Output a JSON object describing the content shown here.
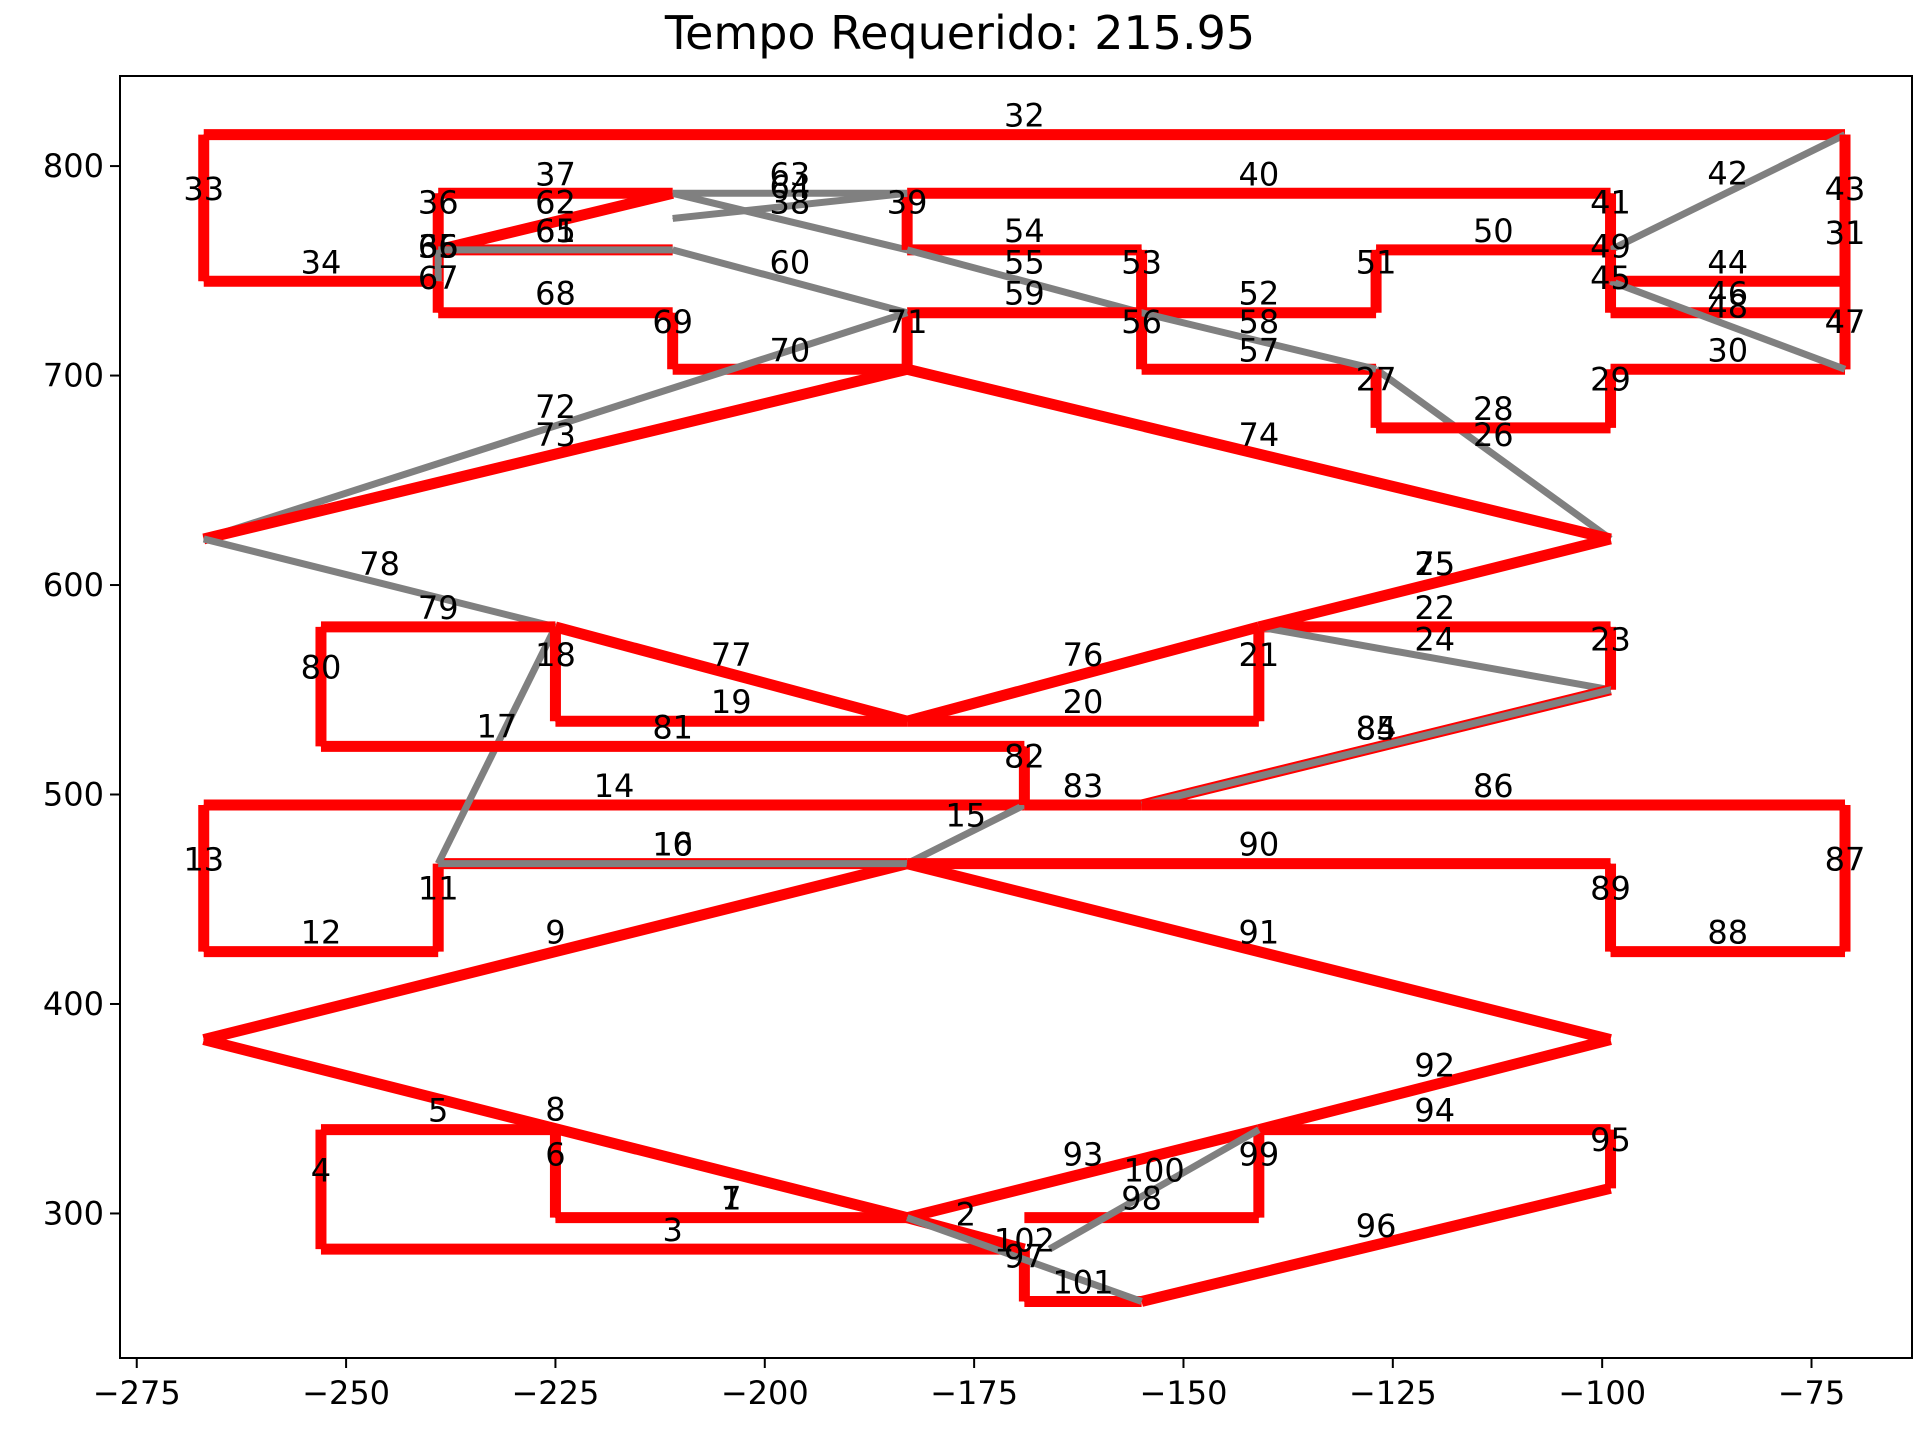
{
  "chart_data": {
    "type": "line",
    "title": "Tempo Requerido: 215.95",
    "xlabel": "",
    "ylabel": "",
    "xlim": [
      -277,
      -63
    ],
    "ylim": [
      231,
      843
    ],
    "xticks": [
      -275,
      -250,
      -225,
      -200,
      -175,
      -150,
      -125,
      -100,
      -75
    ],
    "xtick_labels": [
      "−275",
      "−250",
      "−225",
      "−200",
      "−175",
      "−150",
      "−125",
      "−100",
      "−75"
    ],
    "yticks": [
      300,
      400,
      500,
      600,
      700,
      800
    ],
    "ytick_labels": [
      "300",
      "400",
      "500",
      "600",
      "700",
      "800"
    ],
    "grid": false,
    "legend": "none",
    "colors": {
      "loaded": "#ff0000",
      "empty": "#808080"
    },
    "segments": [
      {
        "label": "1",
        "from": [
          -225,
          298
        ],
        "to": [
          -183,
          298
        ],
        "kind": "empty"
      },
      {
        "label": "2",
        "from": [
          -183,
          298
        ],
        "to": [
          -169,
          283
        ],
        "kind": "loaded"
      },
      {
        "label": "3",
        "from": [
          -169,
          283
        ],
        "to": [
          -253,
          283
        ],
        "kind": "loaded"
      },
      {
        "label": "4",
        "from": [
          -253,
          283
        ],
        "to": [
          -253,
          340
        ],
        "kind": "loaded"
      },
      {
        "label": "5",
        "from": [
          -253,
          340
        ],
        "to": [
          -225,
          340
        ],
        "kind": "loaded"
      },
      {
        "label": "6",
        "from": [
          -225,
          340
        ],
        "to": [
          -225,
          298
        ],
        "kind": "loaded"
      },
      {
        "label": "7",
        "from": [
          -225,
          298
        ],
        "to": [
          -183,
          298
        ],
        "kind": "loaded"
      },
      {
        "label": "8",
        "from": [
          -183,
          298
        ],
        "to": [
          -267,
          383
        ],
        "kind": "loaded"
      },
      {
        "label": "9",
        "from": [
          -267,
          383
        ],
        "to": [
          -183,
          467
        ],
        "kind": "loaded"
      },
      {
        "label": "10",
        "from": [
          -183,
          467
        ],
        "to": [
          -239,
          467
        ],
        "kind": "loaded"
      },
      {
        "label": "11",
        "from": [
          -239,
          467
        ],
        "to": [
          -239,
          425
        ],
        "kind": "loaded"
      },
      {
        "label": "12",
        "from": [
          -239,
          425
        ],
        "to": [
          -267,
          425
        ],
        "kind": "loaded"
      },
      {
        "label": "13",
        "from": [
          -267,
          425
        ],
        "to": [
          -267,
          495
        ],
        "kind": "loaded"
      },
      {
        "label": "14",
        "from": [
          -267,
          495
        ],
        "to": [
          -169,
          495
        ],
        "kind": "loaded"
      },
      {
        "label": "15",
        "from": [
          -169,
          495
        ],
        "to": [
          -183,
          467
        ],
        "kind": "empty"
      },
      {
        "label": "16",
        "from": [
          -183,
          467
        ],
        "to": [
          -239,
          467
        ],
        "kind": "empty"
      },
      {
        "label": "17",
        "from": [
          -239,
          467
        ],
        "to": [
          -225,
          580
        ],
        "kind": "empty"
      },
      {
        "label": "18",
        "from": [
          -225,
          580
        ],
        "to": [
          -225,
          535
        ],
        "kind": "loaded"
      },
      {
        "label": "19",
        "from": [
          -225,
          535
        ],
        "to": [
          -183,
          535
        ],
        "kind": "loaded"
      },
      {
        "label": "20",
        "from": [
          -183,
          535
        ],
        "to": [
          -141,
          535
        ],
        "kind": "loaded"
      },
      {
        "label": "21",
        "from": [
          -141,
          535
        ],
        "to": [
          -141,
          580
        ],
        "kind": "loaded"
      },
      {
        "label": "22",
        "from": [
          -141,
          580
        ],
        "to": [
          -99,
          580
        ],
        "kind": "loaded"
      },
      {
        "label": "23",
        "from": [
          -99,
          580
        ],
        "to": [
          -99,
          550
        ],
        "kind": "loaded"
      },
      {
        "label": "24",
        "from": [
          -99,
          550
        ],
        "to": [
          -141,
          580
        ],
        "kind": "empty"
      },
      {
        "label": "25",
        "from": [
          -141,
          580
        ],
        "to": [
          -99,
          622
        ],
        "kind": "empty"
      },
      {
        "label": "26",
        "from": [
          -99,
          622
        ],
        "to": [
          -127,
          703
        ],
        "kind": "empty"
      },
      {
        "label": "27",
        "from": [
          -127,
          703
        ],
        "to": [
          -127,
          675
        ],
        "kind": "loaded"
      },
      {
        "label": "28",
        "from": [
          -127,
          675
        ],
        "to": [
          -99,
          675
        ],
        "kind": "loaded"
      },
      {
        "label": "29",
        "from": [
          -99,
          675
        ],
        "to": [
          -99,
          703
        ],
        "kind": "loaded"
      },
      {
        "label": "30",
        "from": [
          -99,
          703
        ],
        "to": [
          -71,
          703
        ],
        "kind": "loaded"
      },
      {
        "label": "31",
        "from": [
          -71,
          703
        ],
        "to": [
          -71,
          815
        ],
        "kind": "loaded"
      },
      {
        "label": "32",
        "from": [
          -71,
          815
        ],
        "to": [
          -267,
          815
        ],
        "kind": "loaded"
      },
      {
        "label": "33",
        "from": [
          -267,
          815
        ],
        "to": [
          -267,
          745
        ],
        "kind": "loaded"
      },
      {
        "label": "34",
        "from": [
          -267,
          745
        ],
        "to": [
          -239,
          745
        ],
        "kind": "loaded"
      },
      {
        "label": "35",
        "from": [
          -239,
          745
        ],
        "to": [
          -239,
          760
        ],
        "kind": "loaded"
      },
      {
        "label": "36",
        "from": [
          -239,
          760
        ],
        "to": [
          -239,
          787
        ],
        "kind": "loaded"
      },
      {
        "label": "37",
        "from": [
          -239,
          787
        ],
        "to": [
          -211,
          787
        ],
        "kind": "loaded"
      },
      {
        "label": "38",
        "from": [
          -211,
          787
        ],
        "to": [
          -183,
          760
        ],
        "kind": "empty"
      },
      {
        "label": "39",
        "from": [
          -183,
          760
        ],
        "to": [
          -183,
          787
        ],
        "kind": "loaded"
      },
      {
        "label": "40",
        "from": [
          -183,
          787
        ],
        "to": [
          -99,
          787
        ],
        "kind": "loaded"
      },
      {
        "label": "41",
        "from": [
          -99,
          787
        ],
        "to": [
          -99,
          760
        ],
        "kind": "loaded"
      },
      {
        "label": "42",
        "from": [
          -99,
          760
        ],
        "to": [
          -71,
          815
        ],
        "kind": "empty"
      },
      {
        "label": "43",
        "from": [
          -71,
          815
        ],
        "to": [
          -71,
          745
        ],
        "kind": "loaded"
      },
      {
        "label": "44",
        "from": [
          -71,
          745
        ],
        "to": [
          -99,
          745
        ],
        "kind": "loaded"
      },
      {
        "label": "45",
        "from": [
          -99,
          745
        ],
        "to": [
          -99,
          730
        ],
        "kind": "loaded"
      },
      {
        "label": "46",
        "from": [
          -99,
          730
        ],
        "to": [
          -71,
          730
        ],
        "kind": "loaded"
      },
      {
        "label": "47",
        "from": [
          -71,
          730
        ],
        "to": [
          -71,
          703
        ],
        "kind": "loaded"
      },
      {
        "label": "48",
        "from": [
          -71,
          703
        ],
        "to": [
          -99,
          745
        ],
        "kind": "empty"
      },
      {
        "label": "49",
        "from": [
          -99,
          745
        ],
        "to": [
          -99,
          760
        ],
        "kind": "loaded"
      },
      {
        "label": "50",
        "from": [
          -99,
          760
        ],
        "to": [
          -127,
          760
        ],
        "kind": "loaded"
      },
      {
        "label": "51",
        "from": [
          -127,
          760
        ],
        "to": [
          -127,
          730
        ],
        "kind": "loaded"
      },
      {
        "label": "52",
        "from": [
          -127,
          730
        ],
        "to": [
          -155,
          730
        ],
        "kind": "loaded"
      },
      {
        "label": "53",
        "from": [
          -155,
          730
        ],
        "to": [
          -155,
          760
        ],
        "kind": "loaded"
      },
      {
        "label": "54",
        "from": [
          -155,
          760
        ],
        "to": [
          -183,
          760
        ],
        "kind": "loaded"
      },
      {
        "label": "55",
        "from": [
          -183,
          760
        ],
        "to": [
          -155,
          730
        ],
        "kind": "empty"
      },
      {
        "label": "56",
        "from": [
          -155,
          730
        ],
        "to": [
          -155,
          703
        ],
        "kind": "loaded"
      },
      {
        "label": "57",
        "from": [
          -155,
          703
        ],
        "to": [
          -127,
          703
        ],
        "kind": "loaded"
      },
      {
        "label": "58",
        "from": [
          -127,
          703
        ],
        "to": [
          -155,
          730
        ],
        "kind": "empty"
      },
      {
        "label": "59",
        "from": [
          -155,
          730
        ],
        "to": [
          -183,
          730
        ],
        "kind": "loaded"
      },
      {
        "label": "60",
        "from": [
          -183,
          730
        ],
        "to": [
          -211,
          760
        ],
        "kind": "empty"
      },
      {
        "label": "61",
        "from": [
          -211,
          760
        ],
        "to": [
          -239,
          760
        ],
        "kind": "loaded"
      },
      {
        "label": "62",
        "from": [
          -239,
          760
        ],
        "to": [
          -211,
          787
        ],
        "kind": "loaded"
      },
      {
        "label": "63",
        "from": [
          -211,
          787
        ],
        "to": [
          -183,
          787
        ],
        "kind": "empty"
      },
      {
        "label": "64",
        "from": [
          -183,
          787
        ],
        "to": [
          -211,
          775
        ],
        "kind": "empty"
      },
      {
        "label": "65",
        "from": [
          -211,
          760
        ],
        "to": [
          -239,
          760
        ],
        "kind": "empty"
      },
      {
        "label": "66",
        "from": [
          -239,
          760
        ],
        "to": [
          -239,
          745
        ],
        "kind": "empty"
      },
      {
        "label": "67",
        "from": [
          -239,
          745
        ],
        "to": [
          -239,
          730
        ],
        "kind": "loaded"
      },
      {
        "label": "68",
        "from": [
          -239,
          730
        ],
        "to": [
          -211,
          730
        ],
        "kind": "loaded"
      },
      {
        "label": "69",
        "from": [
          -211,
          730
        ],
        "to": [
          -211,
          703
        ],
        "kind": "loaded"
      },
      {
        "label": "70",
        "from": [
          -211,
          703
        ],
        "to": [
          -183,
          703
        ],
        "kind": "loaded"
      },
      {
        "label": "71",
        "from": [
          -183,
          703
        ],
        "to": [
          -183,
          730
        ],
        "kind": "loaded"
      },
      {
        "label": "72",
        "from": [
          -183,
          730
        ],
        "to": [
          -267,
          622
        ],
        "kind": "empty"
      },
      {
        "label": "73",
        "from": [
          -267,
          622
        ],
        "to": [
          -183,
          703
        ],
        "kind": "loaded"
      },
      {
        "label": "74",
        "from": [
          -183,
          703
        ],
        "to": [
          -99,
          622
        ],
        "kind": "loaded"
      },
      {
        "label": "75",
        "from": [
          -99,
          622
        ],
        "to": [
          -141,
          580
        ],
        "kind": "loaded"
      },
      {
        "label": "76",
        "from": [
          -141,
          580
        ],
        "to": [
          -183,
          535
        ],
        "kind": "loaded"
      },
      {
        "label": "77",
        "from": [
          -183,
          535
        ],
        "to": [
          -225,
          580
        ],
        "kind": "loaded"
      },
      {
        "label": "78",
        "from": [
          -225,
          580
        ],
        "to": [
          -267,
          622
        ],
        "kind": "empty"
      },
      {
        "label": "79",
        "from": [
          -225,
          580
        ],
        "to": [
          -253,
          580
        ],
        "kind": "loaded"
      },
      {
        "label": "80",
        "from": [
          -253,
          580
        ],
        "to": [
          -253,
          523
        ],
        "kind": "loaded"
      },
      {
        "label": "81",
        "from": [
          -253,
          523
        ],
        "to": [
          -169,
          523
        ],
        "kind": "loaded"
      },
      {
        "label": "82",
        "from": [
          -169,
          523
        ],
        "to": [
          -169,
          495
        ],
        "kind": "loaded"
      },
      {
        "label": "83",
        "from": [
          -169,
          495
        ],
        "to": [
          -155,
          495
        ],
        "kind": "loaded"
      },
      {
        "label": "84",
        "from": [
          -155,
          495
        ],
        "to": [
          -99,
          550
        ],
        "kind": "loaded"
      },
      {
        "label": "85",
        "from": [
          -99,
          550
        ],
        "to": [
          -155,
          495
        ],
        "kind": "empty"
      },
      {
        "label": "86",
        "from": [
          -155,
          495
        ],
        "to": [
          -71,
          495
        ],
        "kind": "loaded"
      },
      {
        "label": "87",
        "from": [
          -71,
          495
        ],
        "to": [
          -71,
          425
        ],
        "kind": "loaded"
      },
      {
        "label": "88",
        "from": [
          -71,
          425
        ],
        "to": [
          -99,
          425
        ],
        "kind": "loaded"
      },
      {
        "label": "89",
        "from": [
          -99,
          425
        ],
        "to": [
          -99,
          467
        ],
        "kind": "loaded"
      },
      {
        "label": "90",
        "from": [
          -99,
          467
        ],
        "to": [
          -183,
          467
        ],
        "kind": "loaded"
      },
      {
        "label": "91",
        "from": [
          -183,
          467
        ],
        "to": [
          -99,
          383
        ],
        "kind": "loaded"
      },
      {
        "label": "92",
        "from": [
          -99,
          383
        ],
        "to": [
          -141,
          340
        ],
        "kind": "loaded"
      },
      {
        "label": "93",
        "from": [
          -141,
          340
        ],
        "to": [
          -183,
          298
        ],
        "kind": "loaded"
      },
      {
        "label": "94",
        "from": [
          -141,
          340
        ],
        "to": [
          -99,
          340
        ],
        "kind": "loaded"
      },
      {
        "label": "95",
        "from": [
          -99,
          340
        ],
        "to": [
          -99,
          312
        ],
        "kind": "loaded"
      },
      {
        "label": "96",
        "from": [
          -99,
          312
        ],
        "to": [
          -155,
          258
        ],
        "kind": "loaded"
      },
      {
        "label": "97",
        "from": [
          -169,
          283
        ],
        "to": [
          -169,
          258
        ],
        "kind": "loaded"
      },
      {
        "label": "98",
        "from": [
          -169,
          298
        ],
        "to": [
          -141,
          298
        ],
        "kind": "loaded"
      },
      {
        "label": "99",
        "from": [
          -141,
          298
        ],
        "to": [
          -141,
          340
        ],
        "kind": "loaded"
      },
      {
        "label": "100",
        "from": [
          -141,
          340
        ],
        "to": [
          -166,
          283
        ],
        "kind": "empty"
      },
      {
        "label": "101",
        "from": [
          -169,
          258
        ],
        "to": [
          -155,
          258
        ],
        "kind": "loaded"
      },
      {
        "label": "102",
        "from": [
          -155,
          258
        ],
        "to": [
          -183,
          298
        ],
        "kind": "empty"
      }
    ]
  }
}
